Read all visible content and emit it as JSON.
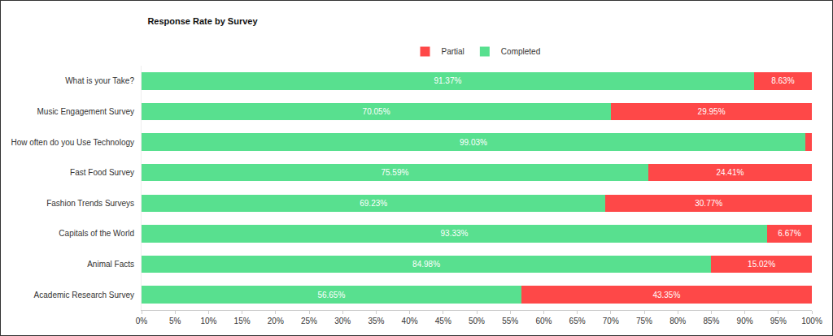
{
  "chart_data": {
    "type": "bar",
    "title": "Response Rate by Survey",
    "orientation": "horizontal",
    "stacked": true,
    "data_labels": true,
    "grid": false,
    "legend": "top",
    "categories": [
      "What is your Take?",
      "Music Engagement Survey",
      "How often do you Use Technology",
      "Fast Food Survey",
      "Fashion Trends Surveys",
      "Capitals of the World",
      "Animal Facts",
      "Academic Research Survey"
    ],
    "series": [
      {
        "name": "Completed",
        "color": "#58e08f",
        "values": [
          91.37,
          70.05,
          99.03,
          75.59,
          69.23,
          93.33,
          84.98,
          56.65
        ],
        "value_labels": [
          "91.37%",
          "70.05%",
          "99.03%",
          "75.59%",
          "69.23%",
          "93.33%",
          "84.98%",
          "56.65%"
        ]
      },
      {
        "name": "Partial",
        "color": "#fe4848",
        "values": [
          8.63,
          29.95,
          0.97,
          24.41,
          30.77,
          6.67,
          15.02,
          43.35
        ],
        "value_labels": [
          "8.63%",
          "29.95%",
          null,
          "24.41%",
          "30.77%",
          "6.67%",
          "15.02%",
          "43.35%"
        ]
      }
    ],
    "xlim": [
      0,
      100
    ],
    "xticks": [
      {
        "value": 0,
        "label": "0%"
      },
      {
        "value": 5,
        "label": "5%"
      },
      {
        "value": 10,
        "label": "10%"
      },
      {
        "value": 15,
        "label": "15%"
      },
      {
        "value": 20,
        "label": "20%"
      },
      {
        "value": 25,
        "label": "25%"
      },
      {
        "value": 30,
        "label": "30%"
      },
      {
        "value": 35,
        "label": "35%"
      },
      {
        "value": 40,
        "label": "40%"
      },
      {
        "value": 45,
        "label": "45%"
      },
      {
        "value": 50,
        "label": "50%"
      },
      {
        "value": 55,
        "label": "55%"
      },
      {
        "value": 60,
        "label": "60%"
      },
      {
        "value": 65,
        "label": "65%"
      },
      {
        "value": 70,
        "label": "70%"
      },
      {
        "value": 75,
        "label": "75%"
      },
      {
        "value": 80,
        "label": "80%"
      },
      {
        "value": 85,
        "label": "85%"
      },
      {
        "value": 90,
        "label": "90%"
      },
      {
        "value": 95,
        "label": "95%"
      },
      {
        "value": 100,
        "label": "100%"
      }
    ]
  }
}
